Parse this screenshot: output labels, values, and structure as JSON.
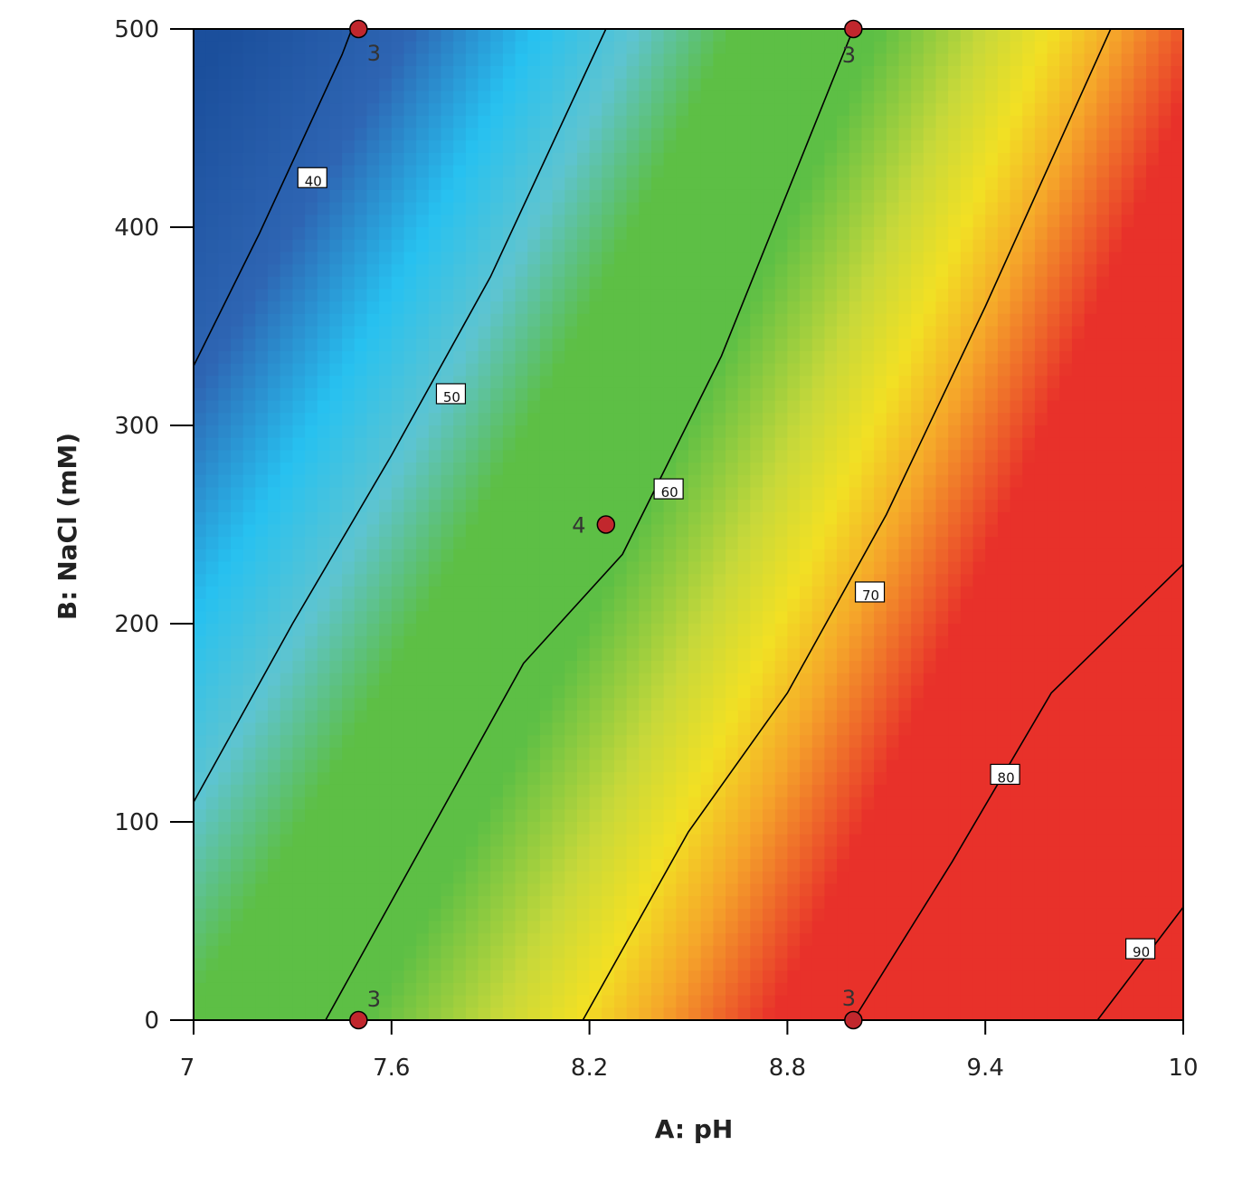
{
  "chart_data": {
    "type": "contour",
    "xlabel": "A: pH",
    "ylabel": "B: NaCl (mM)",
    "xlim": [
      7,
      10
    ],
    "ylim": [
      0,
      500
    ],
    "x_ticks": [
      7,
      7.6,
      8.2,
      8.8,
      9.4,
      10
    ],
    "x_tick_labels": [
      "7",
      "7.6",
      "8.2",
      "8.8",
      "9.4",
      "10"
    ],
    "y_ticks": [
      0,
      100,
      200,
      300,
      400,
      500
    ],
    "y_tick_labels": [
      "0",
      "100",
      "200",
      "300",
      "400",
      "500"
    ],
    "contours": [
      {
        "level": "40",
        "points": [
          [
            7.0,
            330
          ],
          [
            7.2,
            397
          ],
          [
            7.45,
            487
          ],
          [
            7.48,
            500
          ]
        ],
        "label_at": [
          7.36,
          425
        ]
      },
      {
        "level": "50",
        "points": [
          [
            7.0,
            110
          ],
          [
            7.3,
            200
          ],
          [
            7.6,
            285
          ],
          [
            7.9,
            375
          ],
          [
            8.25,
            500
          ]
        ],
        "label_at": [
          7.78,
          316
        ]
      },
      {
        "level": "60",
        "points": [
          [
            7.4,
            0
          ],
          [
            7.7,
            90
          ],
          [
            8.0,
            180
          ],
          [
            8.3,
            235
          ],
          [
            8.6,
            335
          ],
          [
            9.0,
            500
          ]
        ],
        "label_at": [
          8.44,
          268
        ]
      },
      {
        "level": "70",
        "points": [
          [
            8.18,
            0
          ],
          [
            8.5,
            95
          ],
          [
            8.8,
            165
          ],
          [
            9.1,
            255
          ],
          [
            9.4,
            360
          ],
          [
            9.78,
            500
          ]
        ],
        "label_at": [
          9.05,
          216
        ]
      },
      {
        "level": "80",
        "points": [
          [
            9.0,
            0
          ],
          [
            9.3,
            80
          ],
          [
            9.6,
            165
          ],
          [
            10.0,
            230
          ]
        ],
        "label_at": [
          9.46,
          124
        ]
      },
      {
        "level": "90",
        "points": [
          [
            9.74,
            0
          ],
          [
            9.9,
            35
          ],
          [
            10.0,
            57
          ]
        ],
        "label_at": [
          9.87,
          36
        ]
      }
    ],
    "design_points": [
      {
        "x": 7.5,
        "y": 500,
        "count": "3",
        "label_pos": "below-right"
      },
      {
        "x": 9.0,
        "y": 500,
        "count": "3",
        "label_pos": "below"
      },
      {
        "x": 8.25,
        "y": 250,
        "count": "4",
        "label_pos": "left"
      },
      {
        "x": 7.5,
        "y": 0,
        "count": "3",
        "label_pos": "above-right"
      },
      {
        "x": 9.0,
        "y": 0,
        "count": "3",
        "label_pos": "above"
      }
    ],
    "colors": {
      "low": "#1b4f9c",
      "mid_low": "#27c1f0",
      "mid": "#5dbf45",
      "mid_high": "#f2e024",
      "high": "#e8312a",
      "contour_line": "#000000",
      "point_fill": "#c1272d"
    },
    "grid": false,
    "legend": "none"
  }
}
